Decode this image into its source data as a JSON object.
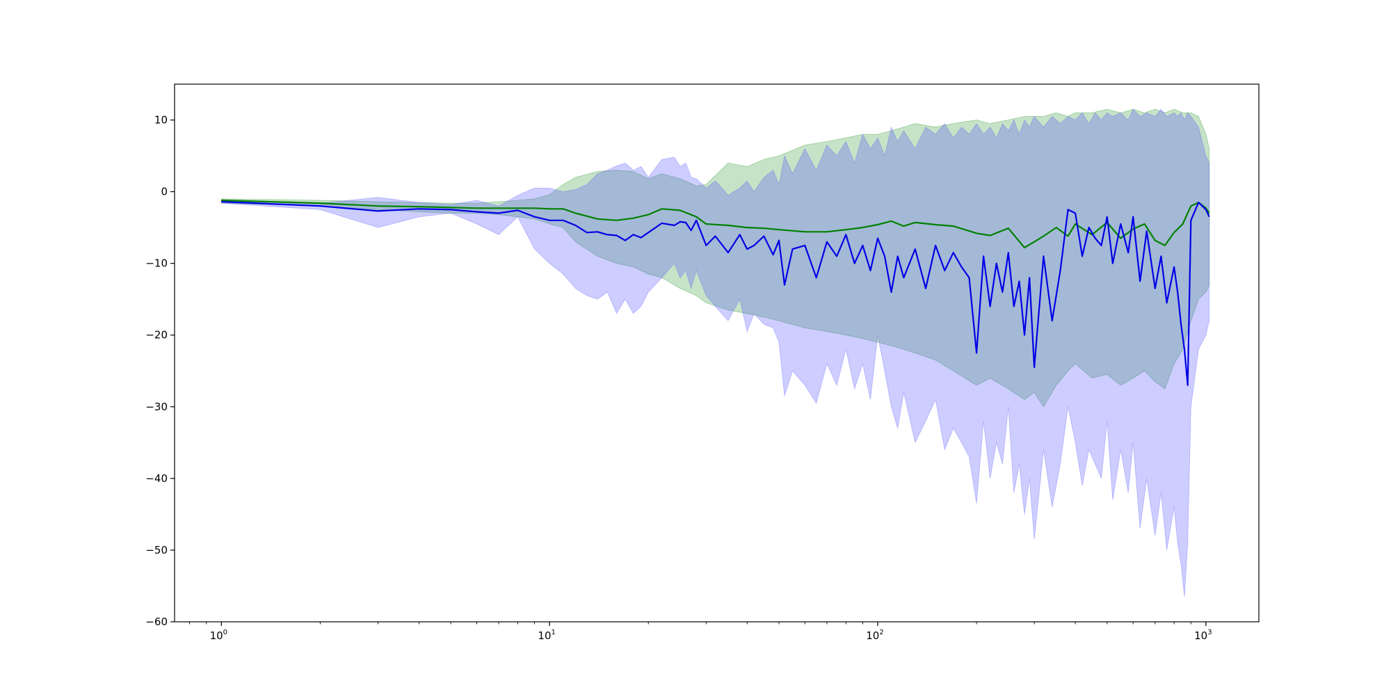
{
  "chart_data": {
    "type": "line",
    "xscale": "log",
    "xlim": [
      0.72,
      1450
    ],
    "ylim": [
      -60,
      15
    ],
    "grid": false,
    "legend": "none",
    "x_ticks": [
      {
        "value": 1,
        "base": "10",
        "exp": "0"
      },
      {
        "value": 10,
        "base": "10",
        "exp": "1"
      },
      {
        "value": 100,
        "base": "10",
        "exp": "2"
      },
      {
        "value": 1000,
        "base": "10",
        "exp": "3"
      }
    ],
    "y_ticks": [
      {
        "value": 10,
        "label": "10"
      },
      {
        "value": 0,
        "label": "0"
      },
      {
        "value": -10,
        "label": "−10"
      },
      {
        "value": -20,
        "label": "−20"
      },
      {
        "value": -30,
        "label": "−30"
      },
      {
        "value": -40,
        "label": "−40"
      },
      {
        "value": -50,
        "label": "−50"
      },
      {
        "value": -60,
        "label": "−60"
      }
    ],
    "series": [
      {
        "color": "#008000",
        "band_color": "#008000",
        "band_opacity": 0.22,
        "x": [
          1,
          2,
          3,
          4,
          5,
          6,
          7,
          8,
          9,
          10,
          11,
          12,
          14,
          16,
          18,
          20,
          22,
          25,
          28,
          30,
          35,
          40,
          45,
          50,
          60,
          70,
          80,
          90,
          100,
          110,
          120,
          130,
          150,
          170,
          200,
          220,
          250,
          280,
          300,
          320,
          350,
          380,
          400,
          450,
          500,
          550,
          600,
          650,
          700,
          750,
          800,
          850,
          900,
          950,
          1000,
          1024
        ],
        "mean": [
          -1.2,
          -1.6,
          -2.0,
          -2.1,
          -2.2,
          -2.3,
          -2.3,
          -2.3,
          -2.3,
          -2.4,
          -2.4,
          -3.0,
          -3.8,
          -4.0,
          -3.7,
          -3.2,
          -2.4,
          -2.6,
          -3.5,
          -4.5,
          -4.7,
          -5.0,
          -5.1,
          -5.3,
          -5.6,
          -5.6,
          -5.3,
          -5.0,
          -4.6,
          -4.1,
          -4.8,
          -4.3,
          -4.6,
          -4.8,
          -5.8,
          -6.1,
          -5.1,
          -7.8,
          -7.0,
          -6.2,
          -5.0,
          -6.2,
          -4.5,
          -6.0,
          -4.3,
          -6.5,
          -5.2,
          -4.5,
          -6.8,
          -7.5,
          -5.7,
          -4.5,
          -2.0,
          -1.5,
          -2.3,
          -3.0
        ],
        "upper": [
          -1.0,
          -1.2,
          -1.4,
          -1.5,
          -1.6,
          -1.6,
          -1.4,
          -1.2,
          -1.0,
          -0.4,
          1.0,
          2.0,
          2.8,
          3.0,
          2.8,
          1.8,
          2.5,
          1.8,
          0.8,
          1.0,
          4.0,
          3.5,
          4.5,
          5.0,
          6.5,
          7.0,
          7.5,
          8.0,
          8.0,
          8.5,
          9.0,
          9.5,
          9.0,
          9.5,
          10.0,
          9.5,
          10.0,
          10.5,
          10.5,
          10.5,
          11.0,
          10.5,
          11.0,
          11.0,
          11.5,
          11.0,
          11.5,
          11.0,
          11.5,
          11.0,
          11.5,
          11.0,
          11.0,
          10.5,
          8.0,
          6.0
        ],
        "lower": [
          -1.6,
          -2.0,
          -2.5,
          -2.8,
          -3.0,
          -3.0,
          -3.2,
          -3.5,
          -3.8,
          -4.5,
          -5.0,
          -7.0,
          -9.0,
          -10.0,
          -10.5,
          -11.5,
          -12.0,
          -13.5,
          -14.5,
          -15.5,
          -16.5,
          -17.0,
          -17.5,
          -18.0,
          -19.0,
          -19.5,
          -20.0,
          -20.5,
          -21.0,
          -21.5,
          -22.0,
          -22.5,
          -23.5,
          -25.0,
          -27.0,
          -26.0,
          -27.5,
          -29.0,
          -28.0,
          -30.0,
          -27.0,
          -25.0,
          -24.0,
          -26.0,
          -25.5,
          -27.0,
          -26.0,
          -25.0,
          -26.5,
          -27.5,
          -24.0,
          -22.0,
          -18.0,
          -15.0,
          -14.0,
          -13.0
        ]
      },
      {
        "color": "#0000e6",
        "band_color": "#4d4dff",
        "band_opacity": 0.28,
        "x": [
          1,
          2,
          3,
          4,
          5,
          6,
          7,
          8,
          9,
          10,
          11,
          12,
          13,
          14,
          15,
          16,
          17,
          18,
          19,
          20,
          22,
          24,
          25,
          26,
          27,
          28,
          30,
          32,
          35,
          38,
          40,
          42,
          45,
          48,
          50,
          52,
          55,
          60,
          65,
          70,
          75,
          80,
          85,
          90,
          95,
          100,
          105,
          110,
          115,
          120,
          130,
          140,
          150,
          160,
          170,
          180,
          190,
          200,
          210,
          220,
          230,
          240,
          250,
          260,
          270,
          280,
          290,
          300,
          320,
          340,
          360,
          380,
          400,
          420,
          440,
          460,
          480,
          500,
          520,
          550,
          580,
          600,
          630,
          660,
          700,
          730,
          760,
          800,
          820,
          840,
          860,
          880,
          900,
          950,
          1000,
          1024
        ],
        "mean": [
          -1.4,
          -2.0,
          -2.7,
          -2.4,
          -2.5,
          -2.8,
          -3.0,
          -2.6,
          -3.5,
          -4.0,
          -4.0,
          -4.7,
          -5.7,
          -5.6,
          -6.0,
          -6.1,
          -6.8,
          -6.0,
          -6.4,
          -5.7,
          -4.4,
          -4.7,
          -4.2,
          -4.3,
          -5.4,
          -4.0,
          -7.5,
          -6.2,
          -8.5,
          -6.0,
          -8.0,
          -7.5,
          -6.2,
          -8.8,
          -6.8,
          -13.0,
          -8.0,
          -7.5,
          -12.0,
          -7.0,
          -9.0,
          -6.0,
          -10.0,
          -7.5,
          -11.0,
          -6.5,
          -9.0,
          -14.0,
          -9.0,
          -12.0,
          -8.0,
          -13.5,
          -7.5,
          -11.0,
          -8.5,
          -10.5,
          -12.0,
          -22.5,
          -9.0,
          -16.0,
          -10.0,
          -14.0,
          -8.5,
          -16.0,
          -12.5,
          -20.0,
          -12.0,
          -24.5,
          -9.0,
          -18.0,
          -11.0,
          -2.5,
          -3.0,
          -9.0,
          -5.0,
          -6.5,
          -7.5,
          -3.5,
          -10.0,
          -4.5,
          -8.5,
          -3.5,
          -12.5,
          -5.5,
          -13.5,
          -9.0,
          -15.5,
          -10.5,
          -14.0,
          -18.5,
          -22.0,
          -27.0,
          -4.0,
          -1.5,
          -2.5,
          -3.5
        ],
        "upper": [
          -1.2,
          -1.6,
          -0.8,
          -1.5,
          -1.8,
          -1.2,
          -2.0,
          -0.5,
          0.5,
          0.5,
          0.0,
          0.3,
          1.0,
          2.5,
          3.0,
          3.6,
          4.0,
          3.0,
          3.5,
          2.0,
          4.5,
          4.8,
          3.5,
          4.0,
          2.0,
          1.8,
          0.5,
          1.5,
          -0.5,
          0.5,
          1.5,
          0.0,
          2.0,
          3.0,
          1.0,
          5.0,
          2.5,
          6.0,
          3.0,
          6.5,
          5.0,
          7.0,
          4.0,
          8.0,
          6.0,
          7.5,
          5.0,
          9.0,
          7.0,
          8.5,
          6.0,
          9.0,
          8.0,
          9.5,
          7.5,
          9.0,
          8.0,
          9.5,
          8.0,
          9.0,
          7.5,
          9.5,
          8.5,
          10.0,
          8.0,
          10.0,
          9.0,
          10.5,
          9.0,
          10.5,
          9.5,
          10.5,
          10.0,
          11.0,
          9.5,
          11.0,
          10.0,
          11.0,
          10.5,
          11.0,
          10.0,
          11.5,
          10.5,
          11.0,
          10.5,
          11.5,
          10.5,
          11.0,
          10.5,
          11.0,
          10.0,
          11.0,
          10.5,
          9.0,
          5.0,
          4.0
        ],
        "lower": [
          -1.6,
          -2.5,
          -5.0,
          -3.5,
          -3.0,
          -4.5,
          -6.0,
          -3.5,
          -8.0,
          -10.0,
          -11.5,
          -13.5,
          -14.5,
          -15.0,
          -14.0,
          -17.0,
          -15.0,
          -17.0,
          -16.0,
          -14.0,
          -12.0,
          -10.0,
          -12.0,
          -11.0,
          -13.5,
          -11.0,
          -14.5,
          -16.0,
          -18.0,
          -15.0,
          -19.5,
          -17.0,
          -18.5,
          -19.0,
          -21.0,
          -28.5,
          -25.0,
          -27.0,
          -29.5,
          -24.0,
          -27.0,
          -22.0,
          -27.5,
          -24.0,
          -29.0,
          -20.0,
          -25.0,
          -30.0,
          -33.0,
          -28.0,
          -35.0,
          -32.0,
          -29.0,
          -36.0,
          -33.0,
          -35.0,
          -37.0,
          -43.5,
          -32.0,
          -40.0,
          -35.0,
          -38.0,
          -30.0,
          -42.0,
          -38.0,
          -45.0,
          -40.0,
          -48.5,
          -36.0,
          -44.0,
          -38.0,
          -30.0,
          -35.0,
          -41.0,
          -36.0,
          -38.0,
          -40.0,
          -32.0,
          -43.0,
          -36.0,
          -42.0,
          -35.0,
          -47.0,
          -40.0,
          -48.0,
          -42.0,
          -50.0,
          -44.0,
          -49.0,
          -52.0,
          -56.5,
          -49.0,
          -30.0,
          -22.0,
          -20.0,
          -18.0
        ]
      }
    ]
  }
}
